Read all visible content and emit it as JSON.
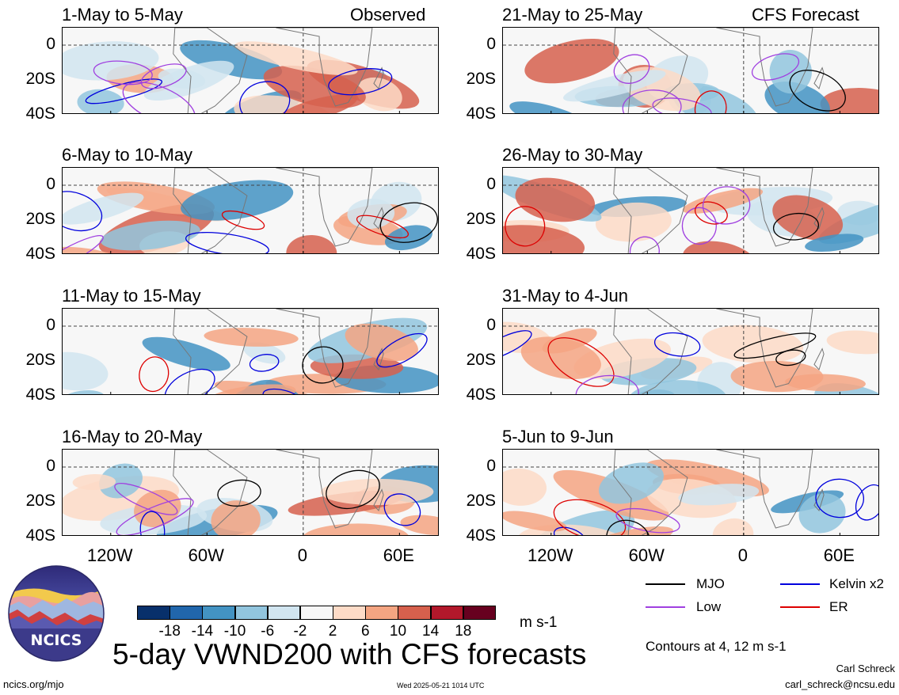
{
  "chart_data": {
    "type": "heatmap",
    "title": "5-day VWND200 with CFS forecasts",
    "units": "m s-1",
    "contour_note": "Contours at 4, 12 m s-1",
    "columns": [
      {
        "header": "Observed",
        "panels": [
          "1-May to 5-May",
          "6-May to 10-May",
          "11-May to 15-May",
          "16-May to 20-May"
        ]
      },
      {
        "header": "CFS Forecast",
        "panels": [
          "21-May to 25-May",
          "26-May to 30-May",
          "31-May to 4-Jun",
          "5-Jun to 9-Jun"
        ]
      }
    ],
    "y_ticks": [
      "0",
      "20S",
      "40S"
    ],
    "x_ticks": [
      "120W",
      "60W",
      "0",
      "60E"
    ],
    "colorbar": {
      "labels": [
        "-18",
        "-14",
        "-10",
        "-6",
        "-2",
        "2",
        "6",
        "10",
        "14",
        "18"
      ],
      "colors": [
        "#08306b",
        "#2166ac",
        "#4393c3",
        "#92c5de",
        "#d1e5f0",
        "#f7f7f7",
        "#fddbc7",
        "#f4a582",
        "#d6604d",
        "#b2182b",
        "#67001f"
      ]
    },
    "legend": [
      {
        "name": "MJO",
        "color": "#000000"
      },
      {
        "name": "Kelvin x2",
        "color": "#0000dd"
      },
      {
        "name": "Low",
        "color": "#a040e0"
      },
      {
        "name": "ER",
        "color": "#dd0000"
      }
    ]
  },
  "footer": {
    "logo_text": "NCICS",
    "url": "ncics.org/mjo",
    "timestamp": "Wed 2025-05-21 1014 UTC",
    "author": "Carl Schreck",
    "email": "carl_schreck@ncsu.edu"
  }
}
